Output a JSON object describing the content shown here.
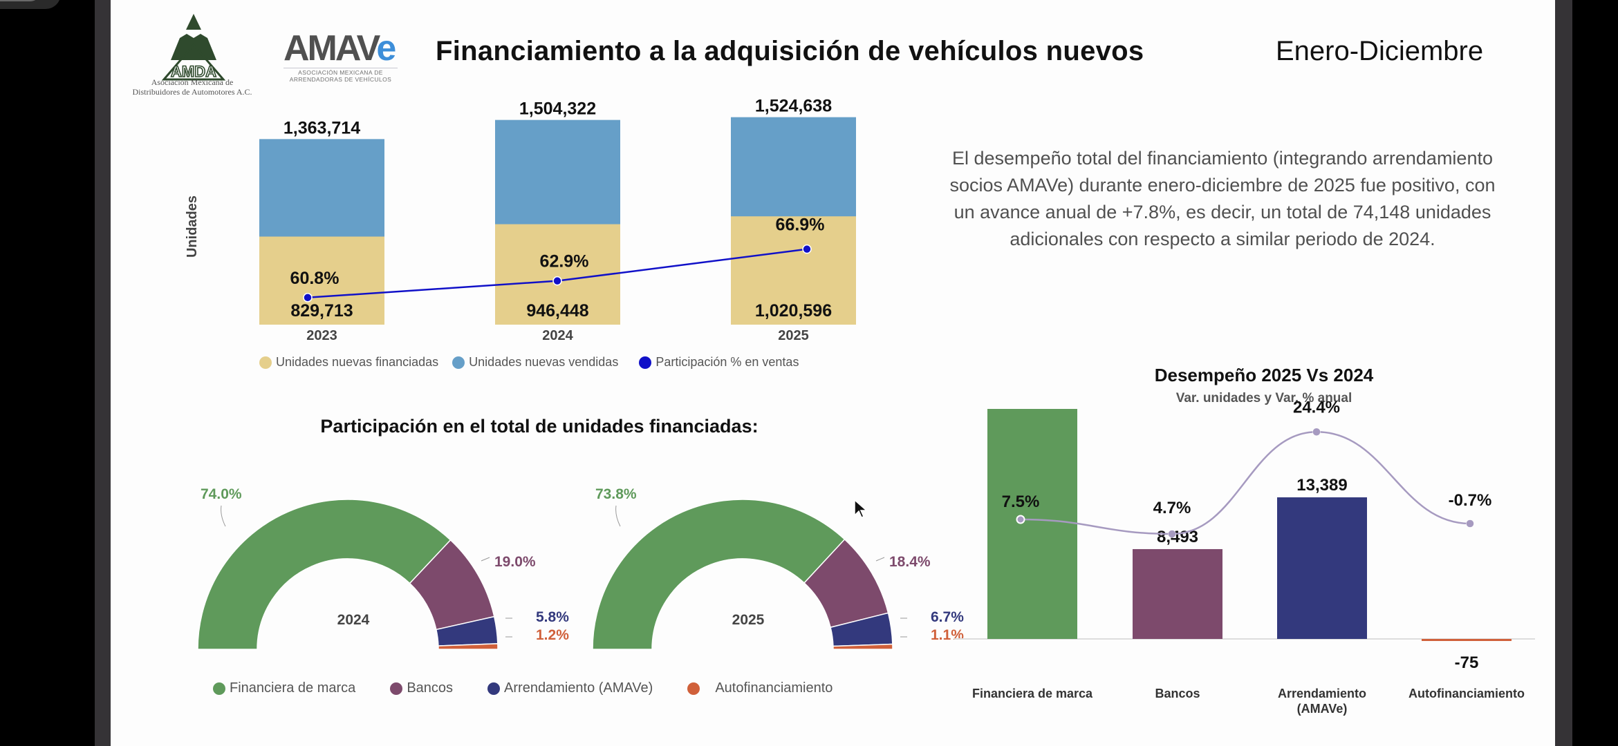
{
  "header": {
    "title": "Financiamiento a la adquisición de vehículos nuevos",
    "period": "Enero-Diciembre",
    "logos": {
      "amda": {
        "name": "AMDA",
        "caption_line1": "Asociación Mexicana de",
        "caption_line2": "Distribuidores de Automotores A.C."
      },
      "amave": {
        "name_main": "AMAV",
        "name_accent": "e",
        "caption_line1": "ASOCIACIÓN MEXICANA DE",
        "caption_line2": "ARRENDADORAS DE VEHÍCULOS"
      }
    }
  },
  "summary": {
    "text": "El desempeño total del financiamiento (integrando arrendamiento socios AMAVe) durante enero-diciembre de 2025 fue positivo, con un avance anual de +7.8%, es decir, un total de 74,148 unidades adicionales con respecto a similar periodo de 2024."
  },
  "colors": {
    "financed": "#e5cf8c",
    "sold": "#669fc8",
    "participation": "#1010c8",
    "financiera": "#5f9a5b",
    "bancos": "#7d4a6c",
    "arrendamiento": "#33397d",
    "autofinanciamiento": "#d0603a",
    "curve": "#a69ac0"
  },
  "donut_section_title": "Participación en el total de unidades financiadas:",
  "chart_data": [
    {
      "type": "bar",
      "id": "units",
      "title": "",
      "xlabel": "",
      "ylabel": "Unidades",
      "categories": [
        "2023",
        "2024",
        "2025"
      ],
      "series": [
        {
          "name": "Unidades nuevas financiadas",
          "values": [
            829713,
            946448,
            1020596
          ],
          "labels": [
            "829,713",
            "946,448",
            "1,020,596"
          ]
        },
        {
          "name": "Unidades nuevas vendidas",
          "values": [
            1363714,
            1504322,
            1524638
          ],
          "labels": [
            "1,363,714",
            "1,504,322",
            "1,524,638"
          ]
        },
        {
          "name": "Participación % en ventas",
          "type": "line",
          "values": [
            60.8,
            62.9,
            66.9
          ],
          "labels": [
            "60.8%",
            "62.9%",
            "66.9%"
          ]
        }
      ],
      "legend_position": "bottom",
      "grid": false
    },
    {
      "type": "pie",
      "id": "donut-2024",
      "center_label": "2024",
      "categories": [
        "Financiera de marca",
        "Bancos",
        "Arrendamiento (AMAVe)",
        "Autofinanciamiento"
      ],
      "values": [
        74.0,
        19.0,
        5.8,
        1.2
      ],
      "labels": [
        "74.0%",
        "19.0%",
        "5.8%",
        "1.2%"
      ]
    },
    {
      "type": "pie",
      "id": "donut-2025",
      "center_label": "2025",
      "categories": [
        "Financiera de marca",
        "Bancos",
        "Arrendamiento (AMAVe)",
        "Autofinanciamiento"
      ],
      "values": [
        73.8,
        18.4,
        6.7,
        1.1
      ],
      "labels": [
        "73.8%",
        "18.4%",
        "6.7%",
        "1.1%"
      ]
    },
    {
      "type": "bar",
      "id": "performance",
      "title": "Desempeño 2025 Vs 2024",
      "subtitle": "Var. unidades y Var. % anual",
      "categories": [
        "Financiera de marca",
        "Bancos",
        "Arrendamiento (AMAVe)",
        "Autofinanciamiento"
      ],
      "category_lines": [
        [
          "Financiera de marca"
        ],
        [
          "Bancos"
        ],
        [
          "Arrendamiento",
          "(AMAVe)"
        ],
        [
          "Autofinanciamiento"
        ]
      ],
      "series": [
        {
          "name": "Var. unidades",
          "values": [
            null,
            8493,
            13389,
            -75
          ],
          "labels": [
            "",
            "8,493",
            "13,389",
            "-75"
          ],
          "note": "Financiera de marca bar exceeds plot area; value not printed"
        },
        {
          "name": "Var. % anual",
          "type": "line",
          "values": [
            7.5,
            4.7,
            24.4,
            -0.7
          ],
          "labels": [
            "7.5%",
            "4.7%",
            "24.4%",
            "-0.7%"
          ]
        }
      ],
      "legend_position": "none",
      "grid": false
    }
  ],
  "legend_donuts": [
    "Financiera de marca",
    "Bancos",
    "Arrendamiento (AMAVe)",
    "Autofinanciamiento"
  ]
}
